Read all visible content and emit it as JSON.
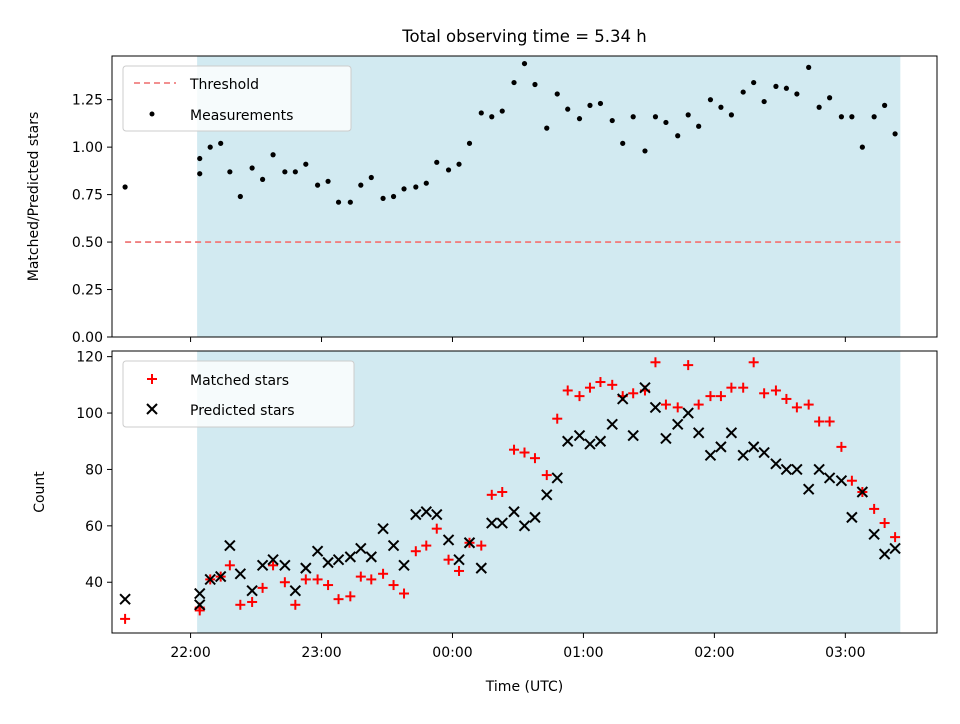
{
  "chart_data": [
    {
      "type": "scatter",
      "title": "Total observing time = 5.34 h",
      "ylabel": "Matched/Predicted stars",
      "xlabel": "",
      "x_unit": "hours",
      "xlim": [
        21.4,
        27.7
      ],
      "ylim": [
        0.0,
        1.48
      ],
      "yticks": [
        0.0,
        0.25,
        0.5,
        0.75,
        1.0,
        1.25
      ],
      "ytick_labels": [
        "0.00",
        "0.25",
        "0.50",
        "0.75",
        "1.00",
        "1.25"
      ],
      "shaded_span": [
        22.05,
        27.42
      ],
      "shade_color": "#add8e6",
      "threshold": {
        "name": "Threshold",
        "value": 0.5,
        "x_range": [
          21.5,
          27.42
        ],
        "color": "#f08080"
      },
      "legend": {
        "placement": "top-left",
        "entries": [
          "Threshold",
          "Measurements"
        ]
      },
      "series": [
        {
          "name": "Measurements",
          "color": "#000000",
          "points": [
            [
              21.5,
              0.79
            ],
            [
              22.07,
              0.94
            ],
            [
              22.07,
              0.86
            ],
            [
              22.15,
              1.0
            ],
            [
              22.23,
              1.02
            ],
            [
              22.3,
              0.87
            ],
            [
              22.38,
              0.74
            ],
            [
              22.47,
              0.89
            ],
            [
              22.55,
              0.83
            ],
            [
              22.63,
              0.96
            ],
            [
              22.72,
              0.87
            ],
            [
              22.8,
              0.87
            ],
            [
              22.88,
              0.91
            ],
            [
              22.97,
              0.8
            ],
            [
              23.05,
              0.82
            ],
            [
              23.13,
              0.71
            ],
            [
              23.22,
              0.71
            ],
            [
              23.3,
              0.8
            ],
            [
              23.38,
              0.84
            ],
            [
              23.47,
              0.73
            ],
            [
              23.55,
              0.74
            ],
            [
              23.63,
              0.78
            ],
            [
              23.72,
              0.79
            ],
            [
              23.8,
              0.81
            ],
            [
              23.88,
              0.92
            ],
            [
              23.97,
              0.88
            ],
            [
              24.05,
              0.91
            ],
            [
              24.13,
              1.02
            ],
            [
              24.22,
              1.18
            ],
            [
              24.3,
              1.16
            ],
            [
              24.38,
              1.19
            ],
            [
              24.47,
              1.34
            ],
            [
              24.55,
              1.44
            ],
            [
              24.63,
              1.33
            ],
            [
              24.72,
              1.1
            ],
            [
              24.8,
              1.28
            ],
            [
              24.88,
              1.2
            ],
            [
              24.97,
              1.15
            ],
            [
              25.05,
              1.22
            ],
            [
              25.13,
              1.23
            ],
            [
              25.22,
              1.14
            ],
            [
              25.3,
              1.02
            ],
            [
              25.38,
              1.16
            ],
            [
              25.47,
              0.98
            ],
            [
              25.55,
              1.16
            ],
            [
              25.63,
              1.13
            ],
            [
              25.72,
              1.06
            ],
            [
              25.8,
              1.17
            ],
            [
              25.88,
              1.11
            ],
            [
              25.97,
              1.25
            ],
            [
              26.05,
              1.21
            ],
            [
              26.13,
              1.17
            ],
            [
              26.22,
              1.29
            ],
            [
              26.3,
              1.34
            ],
            [
              26.38,
              1.24
            ],
            [
              26.47,
              1.32
            ],
            [
              26.55,
              1.31
            ],
            [
              26.63,
              1.28
            ],
            [
              26.72,
              1.42
            ],
            [
              26.8,
              1.21
            ],
            [
              26.88,
              1.26
            ],
            [
              26.97,
              1.16
            ],
            [
              27.05,
              1.16
            ],
            [
              27.13,
              1.0
            ],
            [
              27.22,
              1.16
            ],
            [
              27.3,
              1.22
            ],
            [
              27.38,
              1.07
            ]
          ]
        }
      ]
    },
    {
      "type": "scatter",
      "title": "",
      "ylabel": "Count",
      "xlabel": "Time (UTC)",
      "x_unit": "hours",
      "xlim": [
        21.4,
        27.7
      ],
      "ylim": [
        22,
        122
      ],
      "yticks": [
        40,
        60,
        80,
        100,
        120
      ],
      "ytick_labels": [
        "40",
        "60",
        "80",
        "100",
        "120"
      ],
      "xticks": [
        22,
        23,
        24,
        25,
        26,
        27
      ],
      "xtick_labels": [
        "22:00",
        "23:00",
        "00:00",
        "01:00",
        "02:00",
        "03:00"
      ],
      "shaded_span": [
        22.05,
        27.42
      ],
      "shade_color": "#add8e6",
      "legend": {
        "placement": "top-left",
        "entries": [
          "Matched stars",
          "Predicted stars"
        ]
      },
      "series": [
        {
          "name": "Matched stars",
          "marker": "plus",
          "color": "#ff0000",
          "points": [
            [
              21.5,
              27
            ],
            [
              22.07,
              30
            ],
            [
              22.07,
              31
            ],
            [
              22.15,
              41
            ],
            [
              22.23,
              42
            ],
            [
              22.3,
              46
            ],
            [
              22.38,
              32
            ],
            [
              22.47,
              33
            ],
            [
              22.55,
              38
            ],
            [
              22.63,
              46
            ],
            [
              22.72,
              40
            ],
            [
              22.8,
              32
            ],
            [
              22.88,
              41
            ],
            [
              22.97,
              41
            ],
            [
              23.05,
              39
            ],
            [
              23.13,
              34
            ],
            [
              23.22,
              35
            ],
            [
              23.3,
              42
            ],
            [
              23.38,
              41
            ],
            [
              23.47,
              43
            ],
            [
              23.55,
              39
            ],
            [
              23.63,
              36
            ],
            [
              23.72,
              51
            ],
            [
              23.8,
              53
            ],
            [
              23.88,
              59
            ],
            [
              23.97,
              48
            ],
            [
              24.05,
              44
            ],
            [
              24.13,
              54
            ],
            [
              24.22,
              53
            ],
            [
              24.3,
              71
            ],
            [
              24.38,
              72
            ],
            [
              24.47,
              87
            ],
            [
              24.55,
              86
            ],
            [
              24.63,
              84
            ],
            [
              24.72,
              78
            ],
            [
              24.8,
              98
            ],
            [
              24.88,
              108
            ],
            [
              24.97,
              106
            ],
            [
              25.05,
              109
            ],
            [
              25.13,
              111
            ],
            [
              25.22,
              110
            ],
            [
              25.3,
              106
            ],
            [
              25.38,
              107
            ],
            [
              25.47,
              108
            ],
            [
              25.55,
              118
            ],
            [
              25.63,
              103
            ],
            [
              25.72,
              102
            ],
            [
              25.8,
              117
            ],
            [
              25.88,
              103
            ],
            [
              25.97,
              106
            ],
            [
              26.05,
              106
            ],
            [
              26.13,
              109
            ],
            [
              26.22,
              109
            ],
            [
              26.3,
              118
            ],
            [
              26.38,
              107
            ],
            [
              26.47,
              108
            ],
            [
              26.55,
              105
            ],
            [
              26.63,
              102
            ],
            [
              26.72,
              103
            ],
            [
              26.8,
              97
            ],
            [
              26.88,
              97
            ],
            [
              26.97,
              88
            ],
            [
              27.05,
              76
            ],
            [
              27.13,
              72
            ],
            [
              27.22,
              66
            ],
            [
              27.3,
              61
            ],
            [
              27.38,
              56
            ]
          ]
        },
        {
          "name": "Predicted stars",
          "marker": "x",
          "color": "#000000",
          "points": [
            [
              21.5,
              34
            ],
            [
              22.07,
              32
            ],
            [
              22.07,
              36
            ],
            [
              22.15,
              41
            ],
            [
              22.23,
              42
            ],
            [
              22.3,
              53
            ],
            [
              22.38,
              43
            ],
            [
              22.47,
              37
            ],
            [
              22.55,
              46
            ],
            [
              22.63,
              48
            ],
            [
              22.72,
              46
            ],
            [
              22.8,
              37
            ],
            [
              22.88,
              45
            ],
            [
              22.97,
              51
            ],
            [
              23.05,
              47
            ],
            [
              23.13,
              48
            ],
            [
              23.22,
              49
            ],
            [
              23.3,
              52
            ],
            [
              23.38,
              49
            ],
            [
              23.47,
              59
            ],
            [
              23.55,
              53
            ],
            [
              23.63,
              46
            ],
            [
              23.72,
              64
            ],
            [
              23.8,
              65
            ],
            [
              23.88,
              64
            ],
            [
              23.97,
              55
            ],
            [
              24.05,
              48
            ],
            [
              24.13,
              54
            ],
            [
              24.22,
              45
            ],
            [
              24.3,
              61
            ],
            [
              24.38,
              61
            ],
            [
              24.47,
              65
            ],
            [
              24.55,
              60
            ],
            [
              24.63,
              63
            ],
            [
              24.72,
              71
            ],
            [
              24.8,
              77
            ],
            [
              24.88,
              90
            ],
            [
              24.97,
              92
            ],
            [
              25.05,
              89
            ],
            [
              25.13,
              90
            ],
            [
              25.22,
              96
            ],
            [
              25.3,
              105
            ],
            [
              25.38,
              92
            ],
            [
              25.47,
              109
            ],
            [
              25.55,
              102
            ],
            [
              25.63,
              91
            ],
            [
              25.72,
              96
            ],
            [
              25.8,
              100
            ],
            [
              25.88,
              93
            ],
            [
              25.97,
              85
            ],
            [
              26.05,
              88
            ],
            [
              26.13,
              93
            ],
            [
              26.22,
              85
            ],
            [
              26.3,
              88
            ],
            [
              26.38,
              86
            ],
            [
              26.47,
              82
            ],
            [
              26.55,
              80
            ],
            [
              26.63,
              80
            ],
            [
              26.72,
              73
            ],
            [
              26.8,
              80
            ],
            [
              26.88,
              77
            ],
            [
              26.97,
              76
            ],
            [
              27.05,
              63
            ],
            [
              27.13,
              72
            ],
            [
              27.22,
              57
            ],
            [
              27.3,
              50
            ],
            [
              27.38,
              52
            ]
          ]
        }
      ]
    }
  ]
}
